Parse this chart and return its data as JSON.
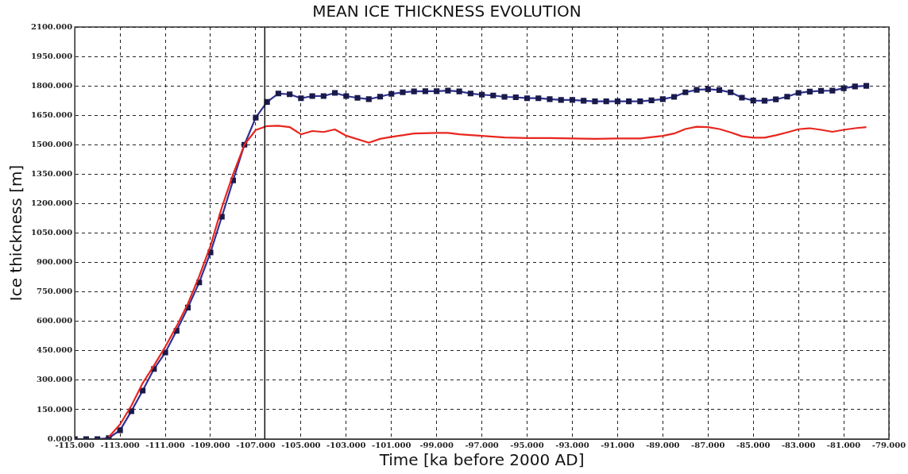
{
  "chart_data": {
    "type": "line",
    "title": "MEAN ICE THICKNESS EVOLUTION",
    "xlabel": "Time [ka before 2000 AD]",
    "ylabel": "Ice thickness [m]",
    "xlim": [
      -115,
      -79
    ],
    "ylim": [
      0,
      2100
    ],
    "xticks": [
      {
        "value": -115,
        "label": "-115.000"
      },
      {
        "value": -113,
        "label": "-113.000"
      },
      {
        "value": -111,
        "label": "-111.000"
      },
      {
        "value": -109,
        "label": "-109.000"
      },
      {
        "value": -107,
        "label": "-107.000"
      },
      {
        "value": -105,
        "label": "-105.000"
      },
      {
        "value": -103,
        "label": "-103.000"
      },
      {
        "value": -101,
        "label": "-101.000"
      },
      {
        "value": -99,
        "label": "-99.000"
      },
      {
        "value": -97,
        "label": "-97.000"
      },
      {
        "value": -95,
        "label": "-95.000"
      },
      {
        "value": -93,
        "label": "-93.000"
      },
      {
        "value": -91,
        "label": "-91.000"
      },
      {
        "value": -89,
        "label": "-89.000"
      },
      {
        "value": -87,
        "label": "-87.000"
      },
      {
        "value": -85,
        "label": "-85.000"
      },
      {
        "value": -83,
        "label": "-83.000"
      },
      {
        "value": -81,
        "label": "-81.000"
      },
      {
        "value": -79,
        "label": "-79.000"
      }
    ],
    "yticks": [
      {
        "value": 0,
        "label": "0.000"
      },
      {
        "value": 150,
        "label": "150.000"
      },
      {
        "value": 300,
        "label": "300.000"
      },
      {
        "value": 450,
        "label": "450.000"
      },
      {
        "value": 600,
        "label": "600.000"
      },
      {
        "value": 750,
        "label": "750.000"
      },
      {
        "value": 900,
        "label": "900.000"
      },
      {
        "value": 1050,
        "label": "1050.000"
      },
      {
        "value": 1200,
        "label": "1200.000"
      },
      {
        "value": 1350,
        "label": "1350.000"
      },
      {
        "value": 1500,
        "label": "1500.000"
      },
      {
        "value": 1650,
        "label": "1650.000"
      },
      {
        "value": 1800,
        "label": "1800.000"
      },
      {
        "value": 1950,
        "label": "1950.000"
      },
      {
        "value": 2100,
        "label": "2100.000"
      }
    ],
    "grid": true,
    "legend": false,
    "line_style": "solid",
    "ref_lines": [
      {
        "axis": "x",
        "value": -106.6,
        "color": "#111111",
        "line_style": "solid"
      }
    ],
    "series": [
      {
        "color": "#e8261f",
        "marker": "none",
        "x": [
          -113.5,
          -113,
          -112.5,
          -112,
          -111.5,
          -111,
          -110.5,
          -110,
          -109.5,
          -109,
          -108.5,
          -108,
          -107.5,
          -107,
          -106.5,
          -106,
          -105.5,
          -105,
          -104.5,
          -104,
          -103.5,
          -103,
          -102,
          -101.5,
          -101,
          -100,
          -99,
          -98.5,
          -98,
          -97,
          -96,
          -95,
          -94,
          -93,
          -92,
          -91,
          -90,
          -89,
          -88.5,
          -88,
          -87.5,
          -87,
          -86.5,
          -86,
          -85.5,
          -85,
          -84.5,
          -84,
          -83.5,
          -83,
          -82.5,
          -82,
          -81.5,
          -81,
          -80.5,
          -80
        ],
        "values": [
          10,
          75,
          170,
          285,
          375,
          470,
          575,
          690,
          830,
          985,
          1180,
          1350,
          1500,
          1575,
          1595,
          1597,
          1590,
          1553,
          1570,
          1565,
          1578,
          1546,
          1510,
          1530,
          1540,
          1557,
          1560,
          1560,
          1553,
          1545,
          1537,
          1534,
          1534,
          1532,
          1530,
          1532,
          1532,
          1545,
          1557,
          1580,
          1592,
          1590,
          1580,
          1563,
          1543,
          1536,
          1536,
          1548,
          1563,
          1579,
          1584,
          1576,
          1566,
          1576,
          1584,
          1590
        ]
      },
      {
        "color": "#2e3192",
        "marker": "square",
        "x": [
          -115,
          -114.5,
          -114,
          -113.5,
          -113,
          -112.5,
          -112,
          -111.5,
          -111,
          -110.5,
          -110,
          -109.5,
          -109,
          -108.5,
          -108,
          -107.5,
          -107,
          -106.5,
          -106,
          -105.5,
          -105,
          -104.5,
          -104,
          -103.5,
          -103,
          -102.5,
          -102,
          -101.5,
          -101,
          -100.5,
          -100,
          -99.5,
          -99,
          -98.5,
          -98,
          -97.5,
          -97,
          -96.5,
          -96,
          -95.5,
          -95,
          -94.5,
          -94,
          -93.5,
          -93,
          -92.5,
          -92,
          -91.5,
          -91,
          -90.5,
          -90,
          -89.5,
          -89,
          -88.5,
          -88,
          -87.5,
          -87,
          -86.5,
          -86,
          -85.5,
          -85,
          -84.5,
          -84,
          -83.5,
          -83,
          -82.5,
          -82,
          -81.5,
          -81,
          -80.5,
          -80
        ],
        "values": [
          0,
          0,
          0,
          5,
          45,
          142,
          247,
          357,
          441,
          552,
          670,
          798,
          951,
          1133,
          1318,
          1500,
          1638,
          1718,
          1761,
          1757,
          1737,
          1748,
          1748,
          1764,
          1748,
          1739,
          1732,
          1745,
          1759,
          1767,
          1772,
          1773,
          1773,
          1776,
          1772,
          1761,
          1755,
          1751,
          1744,
          1742,
          1737,
          1737,
          1732,
          1728,
          1728,
          1724,
          1721,
          1721,
          1721,
          1721,
          1721,
          1726,
          1732,
          1744,
          1767,
          1780,
          1783,
          1779,
          1767,
          1740,
          1725,
          1724,
          1731,
          1745,
          1764,
          1771,
          1775,
          1776,
          1788,
          1797,
          1800
        ]
      }
    ]
  }
}
